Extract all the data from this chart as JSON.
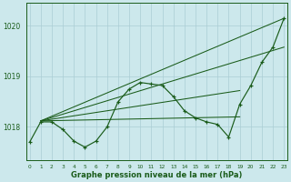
{
  "xlabel": "Graphe pression niveau de la mer (hPa)",
  "x_ticks": [
    0,
    1,
    2,
    3,
    4,
    5,
    6,
    7,
    8,
    9,
    10,
    11,
    12,
    13,
    14,
    15,
    16,
    17,
    18,
    19,
    20,
    21,
    22,
    23
  ],
  "ylim": [
    1017.35,
    1020.45
  ],
  "yticks": [
    1018,
    1019,
    1020
  ],
  "background_color": "#cce8ec",
  "grid_color": "#aacdd4",
  "line_color": "#1a5c1a",
  "main_y": [
    1017.7,
    1018.1,
    1018.1,
    1017.95,
    1017.72,
    1017.6,
    1017.72,
    1018.0,
    1018.5,
    1018.75,
    1018.88,
    1018.85,
    1018.82,
    1018.6,
    1018.32,
    1018.18,
    1018.1,
    1018.05,
    1017.8,
    1018.45,
    1018.82,
    1019.28,
    1019.58,
    1020.15
  ],
  "flat_line": {
    "x": [
      1,
      19
    ],
    "y": [
      1018.12,
      1018.2
    ]
  },
  "rise1": {
    "x": [
      1,
      19
    ],
    "y": [
      1018.12,
      1018.72
    ]
  },
  "rise2": {
    "x": [
      1,
      23
    ],
    "y": [
      1018.12,
      1019.58
    ]
  },
  "rise3": {
    "x": [
      1,
      23
    ],
    "y": [
      1018.12,
      1020.15
    ]
  }
}
